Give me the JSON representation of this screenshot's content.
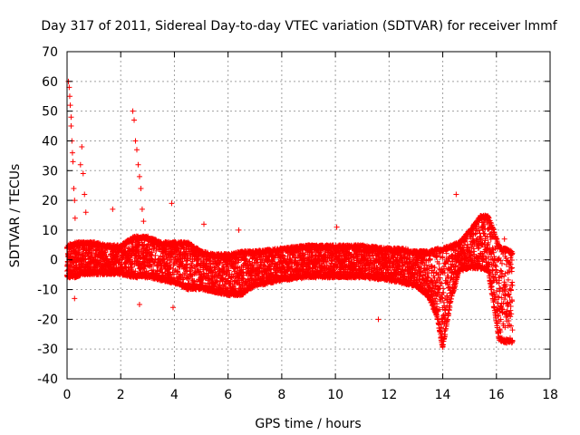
{
  "chart_data": {
    "type": "scatter",
    "title": "Day 317 of 2011, Sidereal Day-to-day VTEC variation (SDTVAR) for receiver lmmf",
    "xlabel": "GPS time / hours",
    "ylabel": "SDTVAR / TECUs",
    "xlim": [
      0,
      18
    ],
    "ylim": [
      -40,
      70
    ],
    "xticks": [
      0,
      2,
      4,
      6,
      8,
      10,
      12,
      14,
      16,
      18
    ],
    "yticks": [
      -40,
      -30,
      -20,
      -10,
      0,
      10,
      20,
      30,
      40,
      50,
      60,
      70
    ],
    "grid": true,
    "marker": "+",
    "color": "#ff0000",
    "series": [
      {
        "name": "SDTVAR",
        "band": {
          "x": [
            0.0,
            0.3,
            0.6,
            1.0,
            1.5,
            2.0,
            2.5,
            3.0,
            3.5,
            4.0,
            4.5,
            5.0,
            5.5,
            6.0,
            6.5,
            7.0,
            8.0,
            9.0,
            10.0,
            11.0,
            12.0,
            12.5,
            13.0,
            13.5,
            13.8,
            14.0,
            14.3,
            14.6,
            15.0,
            15.4,
            15.7,
            15.9,
            16.1,
            16.3,
            16.6
          ],
          "low": [
            -6,
            -6,
            -5,
            -5,
            -5,
            -5,
            -6,
            -6,
            -7,
            -8,
            -10,
            -10,
            -11,
            -12,
            -12,
            -9,
            -7,
            -6,
            -6,
            -6,
            -7,
            -8,
            -9,
            -13,
            -20,
            -30,
            -14,
            -4,
            -3,
            -3,
            -4,
            -16,
            -27,
            -28,
            -28
          ],
          "high": [
            5,
            6,
            6,
            6,
            5,
            5,
            8,
            8,
            6,
            6,
            6,
            3,
            2,
            2,
            3,
            3,
            4,
            5,
            5,
            5,
            4,
            4,
            3,
            3,
            4,
            4,
            5,
            6,
            10,
            15,
            15,
            10,
            5,
            4,
            3
          ]
        },
        "spikes": [
          {
            "x": 0.05,
            "y": 60
          },
          {
            "x": 0.08,
            "y": 58
          },
          {
            "x": 0.1,
            "y": 55
          },
          {
            "x": 0.12,
            "y": 52
          },
          {
            "x": 0.15,
            "y": 48
          },
          {
            "x": 0.15,
            "y": 45
          },
          {
            "x": 0.18,
            "y": 40
          },
          {
            "x": 0.2,
            "y": 36
          },
          {
            "x": 0.22,
            "y": 33
          },
          {
            "x": 0.25,
            "y": 24
          },
          {
            "x": 0.28,
            "y": 20
          },
          {
            "x": 0.3,
            "y": 14
          },
          {
            "x": 0.28,
            "y": -13
          },
          {
            "x": 0.5,
            "y": 32
          },
          {
            "x": 0.55,
            "y": 38
          },
          {
            "x": 0.6,
            "y": 29
          },
          {
            "x": 0.65,
            "y": 22
          },
          {
            "x": 0.7,
            "y": 16
          },
          {
            "x": 1.7,
            "y": 17
          },
          {
            "x": 2.45,
            "y": 50
          },
          {
            "x": 2.5,
            "y": 47
          },
          {
            "x": 2.55,
            "y": 40
          },
          {
            "x": 2.6,
            "y": 37
          },
          {
            "x": 2.65,
            "y": 32
          },
          {
            "x": 2.7,
            "y": 28
          },
          {
            "x": 2.75,
            "y": 24
          },
          {
            "x": 2.8,
            "y": 17
          },
          {
            "x": 2.85,
            "y": 13
          },
          {
            "x": 2.7,
            "y": -15
          },
          {
            "x": 3.9,
            "y": 19
          },
          {
            "x": 3.95,
            "y": -16
          },
          {
            "x": 5.1,
            "y": 12
          },
          {
            "x": 6.4,
            "y": 10
          },
          {
            "x": 10.05,
            "y": 11
          },
          {
            "x": 11.6,
            "y": -20
          },
          {
            "x": 14.5,
            "y": 22
          },
          {
            "x": 16.3,
            "y": 7
          }
        ]
      }
    ]
  }
}
